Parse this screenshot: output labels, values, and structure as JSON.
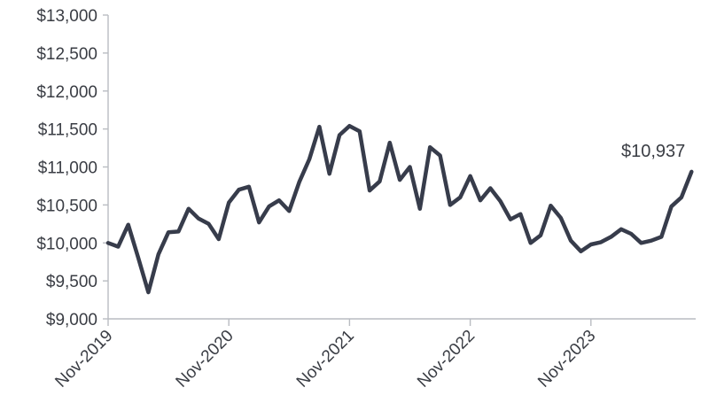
{
  "chart_data": {
    "type": "line",
    "title": "",
    "xlabel": "",
    "ylabel": "",
    "ylim": [
      9000,
      13000
    ],
    "y_ticks": [
      9000,
      9500,
      10000,
      10500,
      11000,
      11500,
      12000,
      12500,
      13000
    ],
    "y_tick_labels": [
      "$9,000",
      "$9,500",
      "$10,000",
      "$10,500",
      "$11,000",
      "$11,500",
      "$12,000",
      "$12,500",
      "$13,000"
    ],
    "x_ticks": [
      {
        "label": "Nov-2019",
        "index": 0
      },
      {
        "label": "Nov-2020",
        "index": 12
      },
      {
        "label": "Nov-2021",
        "index": 24
      },
      {
        "label": "Nov-2022",
        "index": 36
      },
      {
        "label": "Nov-2023",
        "index": 48
      }
    ],
    "grid": false,
    "line_color": "#373c4b",
    "end_label": "$10,937",
    "series": [
      {
        "values": [
          10000,
          9950,
          10240,
          9800,
          9350,
          9850,
          10140,
          10150,
          10450,
          10320,
          10250,
          10050,
          10530,
          10700,
          10740,
          10270,
          10480,
          10560,
          10420,
          10800,
          11100,
          11530,
          10910,
          11420,
          11540,
          11470,
          10690,
          10810,
          11320,
          10830,
          11000,
          10450,
          11260,
          11150,
          10500,
          10600,
          10880,
          10560,
          10720,
          10550,
          10310,
          10380,
          10000,
          10100,
          10490,
          10330,
          10030,
          9890,
          9980,
          10010,
          10080,
          10180,
          10120,
          10000,
          10030,
          10080,
          10480,
          10600,
          10937
        ]
      }
    ]
  }
}
